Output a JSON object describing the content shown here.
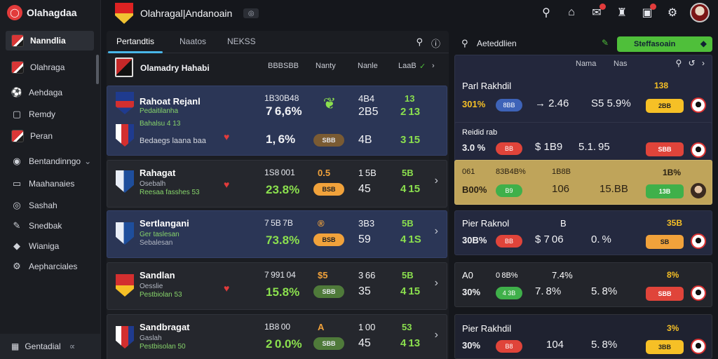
{
  "app": {
    "name": "Olahagdaa",
    "logo_glyph": "◯"
  },
  "topbar": {
    "title": "Olahragal|Andanoain",
    "badge": "◎"
  },
  "sidebar": {
    "items": [
      {
        "label": "Nanndlia",
        "icon": "flag-icon"
      },
      {
        "label": "Olahraga",
        "icon": "flag-icon"
      },
      {
        "label": "Aehdaga",
        "icon": "ball-icon"
      },
      {
        "label": "Remdy",
        "icon": "chat-icon"
      },
      {
        "label": "Peran",
        "icon": "flag-icon"
      },
      {
        "label": "Bentandinngo",
        "icon": "target-icon",
        "suffix": "⌄"
      },
      {
        "label": "Maahanaies",
        "icon": "monitor-icon"
      },
      {
        "label": "Sashah",
        "icon": "globe-icon"
      },
      {
        "label": "Snedbak",
        "icon": "pin-icon"
      },
      {
        "label": "Wianiga",
        "icon": "shield-icon"
      },
      {
        "label": "Aepharciales",
        "icon": "gear-icon"
      }
    ],
    "footer": {
      "label": "Gentadial",
      "suffix": "∝"
    }
  },
  "center": {
    "tabs": [
      "Pertandtis",
      "Naatos",
      "NEKSS"
    ],
    "header": {
      "name": "Olamadry Hahabi",
      "cols": [
        "BBBSBB",
        "Nanty",
        "Nanle",
        "LaaB"
      ]
    },
    "matches": [
      {
        "team_a": "Rahoat Rejanl",
        "sub_a": "Pedaitilanha",
        "team_b": "Bahalsu 4 13",
        "sub_b": "Bedaegs laana baa",
        "odd_top": "1B30B48",
        "pct_1": "7 6,6%",
        "pct_2": "1, 6%",
        "pill": "SBB",
        "n1": "4B4",
        "n2": "2B5",
        "n2b": "4B",
        "n3": "13",
        "n4": "2 13",
        "n4b": "3 15"
      },
      {
        "team": "Rahagat",
        "sub_1": "Osebalh",
        "sub_2": "Reesaa fasshes 53",
        "odd_top": "1S8 001",
        "pct": "23.8%",
        "sym": "0.5",
        "pill": "BSB",
        "n1": "1 5B",
        "n2": "45",
        "n3": "5B",
        "n4": "4 15"
      },
      {
        "team": "Sertlangani",
        "sub_1": "Ger taslesan",
        "sub_2": "Sebalesan",
        "odd_top": "7 5B 7B",
        "pct": "73.8%",
        "sym": "®",
        "pill": "BSB",
        "n1": "3B3",
        "n2": "59",
        "n3": "5B",
        "n4": "4 1S"
      },
      {
        "team": "Sandlan",
        "sub_1": "Oesslie",
        "sub_2": "Pestbiolan 53",
        "odd_top": "7 991 04",
        "pct": "15.8%",
        "sym": "$5",
        "pill": "SBB",
        "n1": "3 66",
        "n2": "35",
        "n3": "5B",
        "n4": "4 15"
      },
      {
        "team": "Sandbragat",
        "sub_1": "Gaslah",
        "sub_2": "Pestbisolan 50",
        "odd_top": "1B8 00",
        "pct": "2 0.0%",
        "sym": "A",
        "pill": "SBB",
        "n1": "1 00",
        "n2": "45",
        "n3": "53",
        "n4": "4 13"
      }
    ]
  },
  "right": {
    "title": "Aeteddlien",
    "button": "Steffasoain",
    "cards": [
      {
        "cols": [
          "Nama",
          "Nas"
        ],
        "r1_label": "Parl Rakhdil",
        "r1_small": "138",
        "r2_pct": "301%",
        "r2_pill": "8BB",
        "r2_mid": "→ 2.46",
        "r2_odd": "S5 5.9%",
        "r2_wide": "2BB"
      },
      {
        "r1_label": "Reidid rab",
        "r1_pct": "3.0 %",
        "pill": "BB",
        "mid": "$ 1B9",
        "odd": "5.1. 95",
        "wide": "SBB"
      },
      {
        "r1_label": "061",
        "r1_sub": "83B4B%",
        "r1_mid": "1B8B",
        "r1_small": "1B%",
        "r2_label": "B00%",
        "pill": "B9",
        "mid": "106",
        "odd": "15.BB",
        "wide": "13B"
      },
      {
        "r1_label": "Pier Raknol",
        "r1_mid": "B",
        "r1_small": "35B",
        "r2_pct": "30B%",
        "pill": "BB",
        "mid": "$ 7 06",
        "odd": "0. %",
        "wide": "SB"
      },
      {
        "r1_label": "A0",
        "r1_sub": "0 8B%",
        "r1_mid": "7.4%",
        "r1_small": "8%",
        "r2_label": "30%",
        "pill": "4 3B",
        "mid": "7. 8%",
        "odd": "5. 8%",
        "wide": "SBB"
      },
      {
        "r1_label": "Pier Rakhdil",
        "r1_small": "3%",
        "r2_pct": "30%",
        "pill": "B8",
        "mid": "104",
        "odd": "5. 8%",
        "wide": "3BB"
      }
    ]
  }
}
